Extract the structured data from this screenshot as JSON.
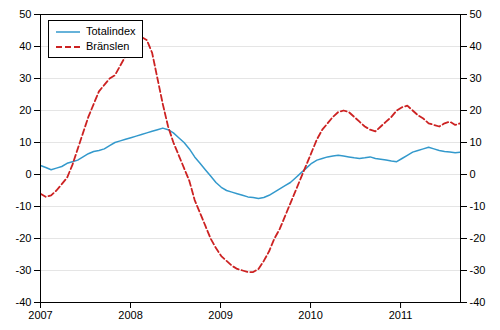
{
  "chart_data": {
    "type": "line",
    "title": "",
    "x": [
      2007,
      2007.059063,
      2007.118127,
      2007.17719,
      2007.236253,
      2007.295316,
      2007.35438,
      2007.413443,
      2007.472506,
      2007.53157,
      2007.590633,
      2007.649696,
      2007.708759,
      2007.767823,
      2007.826886,
      2007.885949,
      2007.945013,
      2008.004076,
      2008.063139,
      2008.122203,
      2008.181266,
      2008.240329,
      2008.299392,
      2008.358456,
      2008.417519,
      2008.476582,
      2008.535646,
      2008.594709,
      2008.653772,
      2008.712835,
      2008.771899,
      2008.830962,
      2008.890025,
      2008.949089,
      2009.008152,
      2009.067215,
      2009.126278,
      2009.185342,
      2009.244405,
      2009.303468,
      2009.362532,
      2009.421595,
      2009.480658,
      2009.539722,
      2009.598785,
      2009.657848,
      2009.716911,
      2009.775975,
      2009.835038,
      2009.894101,
      2009.953165,
      2010.012228,
      2010.071291,
      2010.130354,
      2010.189418,
      2010.248481,
      2010.307544,
      2010.366608,
      2010.425671,
      2010.484734,
      2010.543797,
      2010.602861,
      2010.661924,
      2010.720987,
      2010.780051,
      2010.839114,
      2010.898177,
      2010.957241,
      2011.016304,
      2011.075367,
      2011.13443,
      2011.193494,
      2011.252557,
      2011.31162,
      2011.370684,
      2011.429747,
      2011.48881,
      2011.547873,
      2011.606937,
      2011.666
    ],
    "series": [
      {
        "name": "Totalindex",
        "color": "#3399cc",
        "line_style": "solid",
        "values": [
          2.8,
          2.2,
          1.5,
          2.0,
          2.5,
          3.5,
          4.0,
          4.5,
          5.5,
          6.5,
          7.2,
          7.5,
          8.0,
          9.0,
          10.0,
          10.5,
          11.0,
          11.5,
          12.0,
          12.5,
          13.0,
          13.5,
          14.0,
          14.5,
          14.0,
          13.0,
          11.5,
          10.0,
          8.0,
          5.5,
          3.5,
          1.5,
          -0.5,
          -2.5,
          -4.0,
          -5.0,
          -5.5,
          -6.0,
          -6.5,
          -7.0,
          -7.2,
          -7.5,
          -7.2,
          -6.5,
          -5.5,
          -4.5,
          -3.5,
          -2.5,
          -1.0,
          0.5,
          2.0,
          3.5,
          4.5,
          5.0,
          5.5,
          5.8,
          6.0,
          5.8,
          5.5,
          5.2,
          5.0,
          5.2,
          5.5,
          5.0,
          4.8,
          4.5,
          4.2,
          4.0,
          5.0,
          6.0,
          7.0,
          7.5,
          8.0,
          8.5,
          8.0,
          7.5,
          7.2,
          7.0,
          6.8,
          7.0
        ]
      },
      {
        "name": "Bränslen",
        "color": "#cc2222",
        "line_style": "dashed",
        "axis": "y2",
        "values": [
          -6.0,
          -7.0,
          -6.5,
          -5.0,
          -3.0,
          -1.0,
          3.0,
          8.0,
          13.0,
          18.0,
          22.0,
          26.0,
          28.0,
          30.0,
          31.0,
          34.0,
          37.0,
          40.0,
          42.0,
          43.0,
          42.0,
          38.0,
          30.0,
          22.0,
          15.0,
          10.0,
          6.0,
          2.0,
          -2.0,
          -8.0,
          -12.0,
          -16.0,
          -20.0,
          -23.0,
          -25.5,
          -27.0,
          -28.5,
          -29.5,
          -30.0,
          -30.5,
          -30.5,
          -29.5,
          -27.0,
          -24.0,
          -20.0,
          -17.0,
          -13.0,
          -9.0,
          -5.0,
          -1.0,
          3.0,
          7.0,
          11.0,
          14.0,
          16.0,
          18.0,
          19.5,
          20.0,
          19.5,
          18.0,
          16.5,
          15.0,
          14.0,
          13.5,
          15.0,
          16.5,
          18.0,
          20.0,
          21.0,
          21.5,
          20.0,
          18.5,
          17.5,
          16.0,
          15.5,
          15.0,
          16.0,
          16.5,
          15.5,
          16.0
        ]
      }
    ],
    "xlim": [
      2007,
      2011.666
    ],
    "xticks": [
      2007,
      2008,
      2009,
      2010,
      2011
    ],
    "ylim": [
      -40,
      50
    ],
    "yticks": [
      -40,
      -30,
      -20,
      -10,
      0,
      10,
      20,
      30,
      40,
      50
    ],
    "y2lim": [
      -40,
      50
    ],
    "y2ticks": [
      -40,
      -30,
      -20,
      -10,
      0,
      10,
      20,
      30,
      40,
      50
    ],
    "grid": true,
    "legend": "upper left"
  }
}
